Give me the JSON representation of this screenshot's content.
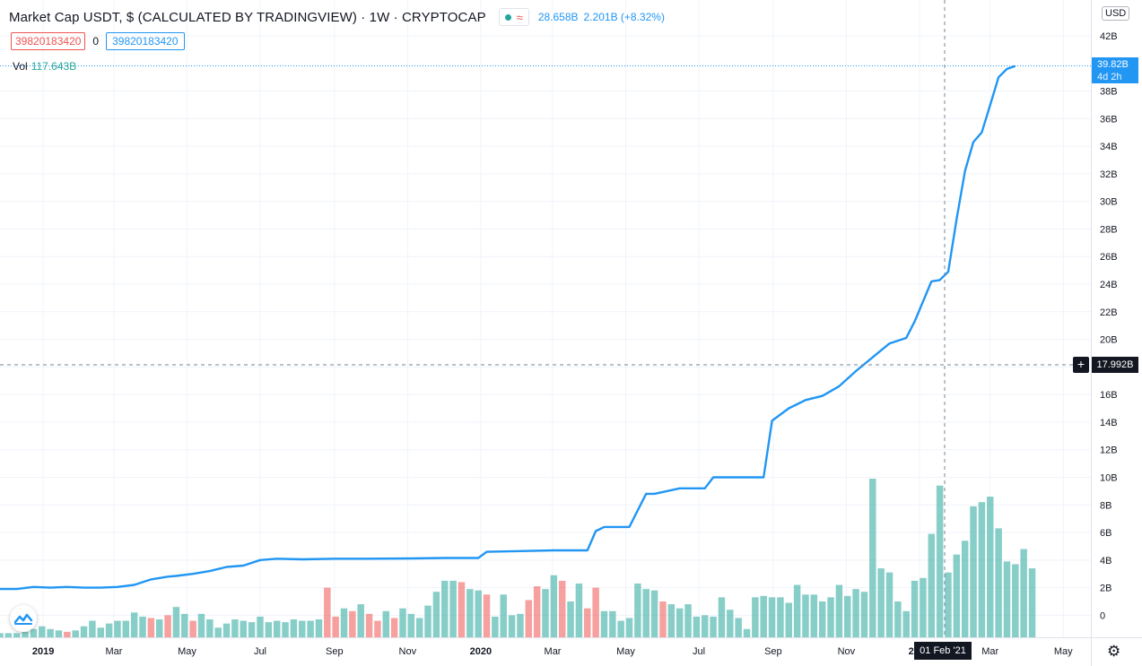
{
  "header": {
    "title": "Market Cap USDT, $ (CALCULATED BY TRADINGVIEW) · 1W · CRYPTOCAP",
    "wave_glyph": "≈",
    "last_value": "28.658B",
    "change": "2.201B (+8.32%)"
  },
  "inputs": {
    "field_a": "39820183420",
    "separator": "0",
    "field_b": "39820183420"
  },
  "volume": {
    "label": "Vol",
    "value": "117.643B"
  },
  "scale": {
    "currency": "USD"
  },
  "price_label": {
    "value": "39.82B",
    "countdown": "4d 2h"
  },
  "crosshair": {
    "price": "17.992B",
    "date": "01 Feb '21",
    "plus": "+"
  },
  "settings_glyph": "⚙",
  "colors": {
    "line": "#2196f3",
    "vol_up": "#26a69a",
    "vol_down": "#ef5350"
  },
  "chart_data": {
    "type": "line",
    "y_axis": {
      "unit": "B",
      "ylim": [
        -1.6,
        44.6
      ],
      "ticks": [
        0,
        2,
        4,
        6,
        8,
        10,
        12,
        14,
        16,
        18,
        20,
        22,
        24,
        26,
        28,
        30,
        32,
        34,
        36,
        38,
        42
      ],
      "tick_labels": [
        "0",
        "2B",
        "4B",
        "6B",
        "8B",
        "10B",
        "12B",
        "14B",
        "16B",
        "18B",
        "20B",
        "22B",
        "24B",
        "26B",
        "28B",
        "30B",
        "32B",
        "34B",
        "36B",
        "38B",
        "42B"
      ]
    },
    "x_axis": {
      "range": [
        "2018-11-26",
        "2021-05-24"
      ],
      "ticks": [
        "2019-01-01",
        "2019-03-01",
        "2019-05-01",
        "2019-07-01",
        "2019-09-01",
        "2019-11-01",
        "2020-01-01",
        "2020-03-01",
        "2020-05-01",
        "2020-07-01",
        "2020-09-01",
        "2020-11-01",
        "2021-01-01",
        "2021-03-01",
        "2021-05-01"
      ],
      "tick_labels": [
        "2019",
        "Mar",
        "May",
        "Jul",
        "Sep",
        "Nov",
        "2020",
        "Mar",
        "May",
        "Jul",
        "Sep",
        "Nov",
        "2021",
        "Mar",
        "May"
      ]
    },
    "grid": true,
    "series": [
      {
        "type": "line",
        "x": [
          "2018-11-26",
          "2018-12-10",
          "2018-12-24",
          "2019-01-07",
          "2019-01-21",
          "2019-02-04",
          "2019-02-18",
          "2019-03-04",
          "2019-03-18",
          "2019-04-01",
          "2019-04-15",
          "2019-04-22",
          "2019-05-06",
          "2019-05-20",
          "2019-06-03",
          "2019-06-17",
          "2019-07-01",
          "2019-07-15",
          "2019-08-05",
          "2019-09-02",
          "2019-09-30",
          "2019-11-04",
          "2019-12-02",
          "2019-12-30",
          "2020-01-06",
          "2020-02-03",
          "2020-03-02",
          "2020-03-30",
          "2020-04-06",
          "2020-04-13",
          "2020-04-27",
          "2020-05-04",
          "2020-05-18",
          "2020-05-25",
          "2020-06-15",
          "2020-07-06",
          "2020-07-13",
          "2020-08-03",
          "2020-08-24",
          "2020-08-31",
          "2020-09-14",
          "2020-09-28",
          "2020-10-12",
          "2020-10-26",
          "2020-11-09",
          "2020-11-23",
          "2020-12-07",
          "2020-12-21",
          "2020-12-28",
          "2021-01-11",
          "2021-01-18",
          "2021-01-25",
          "2021-02-01",
          "2021-02-08",
          "2021-02-15",
          "2021-02-22",
          "2021-03-01",
          "2021-03-08",
          "2021-03-15",
          "2021-03-22"
        ],
        "y": [
          1.9,
          1.9,
          2.05,
          2.0,
          2.05,
          2.0,
          2.0,
          2.05,
          2.2,
          2.6,
          2.8,
          2.85,
          3.0,
          3.2,
          3.5,
          3.6,
          4.0,
          4.1,
          4.05,
          4.1,
          4.1,
          4.12,
          4.15,
          4.15,
          4.6,
          4.65,
          4.7,
          4.7,
          6.1,
          6.4,
          6.4,
          6.4,
          8.8,
          8.8,
          9.2,
          9.2,
          10.0,
          10.0,
          10.0,
          14.1,
          15.0,
          15.6,
          15.9,
          16.6,
          17.7,
          18.7,
          19.7,
          20.1,
          21.3,
          24.2,
          24.3,
          24.9,
          28.7,
          32.2,
          34.3,
          35.0,
          37.0,
          39.0,
          39.6,
          39.82
        ]
      },
      {
        "type": "bar",
        "name": "Vol",
        "x_start": "2018-11-26",
        "step_days": 7,
        "y_hidden_zero_offset": 1.6,
        "values": [
          0.3,
          0.3,
          0.3,
          0.4,
          0.6,
          0.8,
          0.6,
          0.5,
          0.4,
          0.5,
          0.8,
          1.2,
          0.7,
          1.0,
          1.2,
          1.2,
          1.8,
          1.5,
          1.4,
          1.3,
          1.6,
          2.2,
          1.7,
          1.2,
          1.7,
          1.3,
          0.7,
          1.0,
          1.3,
          1.2,
          1.1,
          1.5,
          1.1,
          1.2,
          1.1,
          1.3,
          1.2,
          1.2,
          1.3,
          3.6,
          1.5,
          2.1,
          1.9,
          2.4,
          1.7,
          1.2,
          1.9,
          1.4,
          2.1,
          1.7,
          1.4,
          2.3,
          3.3,
          4.1,
          4.1,
          4.0,
          3.5,
          3.4,
          3.1,
          1.5,
          3.1,
          1.6,
          1.7,
          2.7,
          3.7,
          3.5,
          4.5,
          4.1,
          2.6,
          3.9,
          2.1,
          3.6,
          1.9,
          1.9,
          1.2,
          1.4,
          3.9,
          3.5,
          3.4,
          2.6,
          2.4,
          2.1,
          2.4,
          1.5,
          1.6,
          1.5,
          2.9,
          2.0,
          1.4,
          0.6,
          2.9,
          3.0,
          2.9,
          2.9,
          2.5,
          3.8,
          3.1,
          3.1,
          2.6,
          2.9,
          3.8,
          3.0,
          3.5,
          3.3,
          11.5,
          5.0,
          4.7,
          2.6,
          1.9,
          4.1,
          4.3,
          7.5,
          11.0,
          4.7,
          6.0,
          7.0,
          9.5,
          9.8,
          10.2,
          7.9,
          5.5,
          5.3,
          6.4,
          5.0
        ],
        "up": [
          1,
          1,
          1,
          1,
          1,
          1,
          1,
          1,
          0,
          1,
          1,
          1,
          1,
          1,
          1,
          1,
          1,
          1,
          0,
          1,
          0,
          1,
          1,
          0,
          1,
          1,
          1,
          1,
          1,
          1,
          1,
          1,
          1,
          1,
          1,
          1,
          1,
          1,
          1,
          0,
          0,
          1,
          0,
          1,
          0,
          0,
          1,
          0,
          1,
          1,
          1,
          1,
          1,
          1,
          1,
          0,
          1,
          1,
          0,
          1,
          1,
          1,
          1,
          0,
          0,
          1,
          1,
          0,
          1,
          1,
          0,
          0,
          1,
          1,
          1,
          1,
          1,
          1,
          1,
          0,
          1,
          1,
          1,
          1,
          1,
          1,
          1,
          1,
          1,
          1,
          1,
          1,
          1,
          1,
          1,
          1,
          1,
          1,
          1,
          1,
          1,
          1,
          1,
          1,
          1,
          1,
          1,
          1,
          1,
          1,
          1,
          1,
          1,
          1,
          1,
          1,
          1,
          1,
          1,
          1,
          1,
          1,
          1,
          1
        ]
      }
    ],
    "legend": "none"
  }
}
